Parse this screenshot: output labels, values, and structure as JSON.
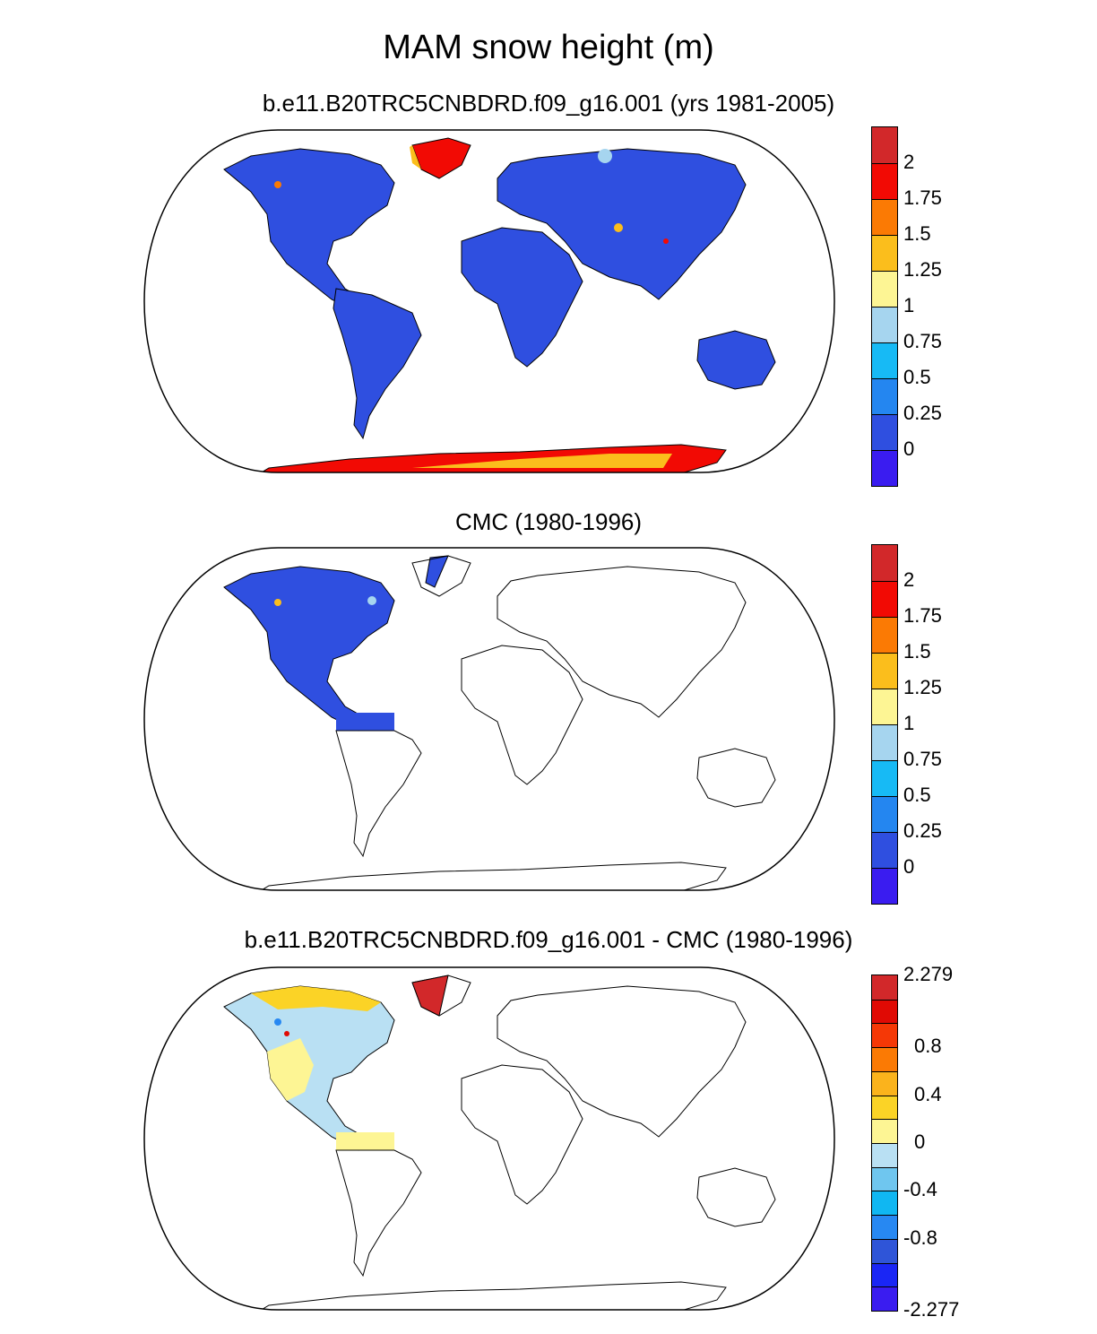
{
  "figure": {
    "title": "MAM snow height (m)"
  },
  "panels": [
    {
      "title": "b.e11.B20TRC5CNBDRD.f09_g16.001 (yrs 1981-2005)",
      "colorbar": {
        "colors": [
          "#3a1cf0",
          "#2f4fe0",
          "#2486f0",
          "#17baf5",
          "#a6d5ef",
          "#fdf594",
          "#fbbe1c",
          "#fb7a04",
          "#f20a04",
          "#d2282a"
        ],
        "labels": [
          "0",
          "0.25",
          "0.5",
          "0.75",
          "1",
          "1.25",
          "1.5",
          "1.75",
          "2"
        ]
      }
    },
    {
      "title": "CMC (1980-1996)",
      "colorbar": {
        "colors": [
          "#3a1cf0",
          "#2f4fe0",
          "#2486f0",
          "#17baf5",
          "#a6d5ef",
          "#fdf594",
          "#fbbe1c",
          "#fb7a04",
          "#f20a04",
          "#d2282a"
        ],
        "labels": [
          "0",
          "0.25",
          "0.5",
          "0.75",
          "1",
          "1.25",
          "1.5",
          "1.75",
          "2"
        ]
      }
    },
    {
      "title": "b.e11.B20TRC5CNBDRD.f09_g16.001 - CMC (1980-1996)",
      "colorbar": {
        "colors": [
          "#3a1cf0",
          "#1a26f5",
          "#2f55d8",
          "#2788f2",
          "#10b7f2",
          "#6fc6ef",
          "#b9e0f3",
          "#fdf594",
          "#fbd326",
          "#fbb31c",
          "#fb7a04",
          "#f53806",
          "#e00a04",
          "#d2282a"
        ],
        "labels": [
          "-2.277",
          "-0.8",
          "-0.4",
          "0",
          "0.4",
          "0.8",
          "2.279"
        ]
      }
    }
  ]
}
